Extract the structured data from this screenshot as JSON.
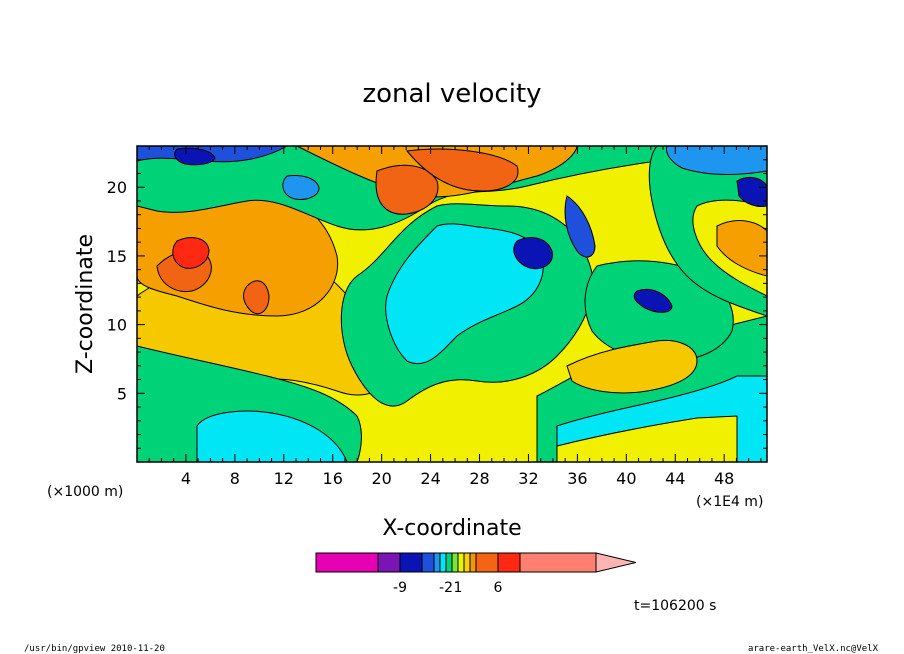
{
  "footer": {
    "left": "/usr/bin/gpview   2010-11-20",
    "right": "arare-earth_VelX.nc@VelX"
  },
  "chart_data": {
    "type": "heatmap",
    "title": "zonal velocity",
    "xlabel": "X-coordinate",
    "ylabel": "Z-coordinate",
    "x_unit": "(×1E4 m)",
    "y_unit": "(×1000 m)",
    "x_ticks": [
      "4",
      "8",
      "12",
      "16",
      "20",
      "24",
      "28",
      "32",
      "36",
      "40",
      "44",
      "48"
    ],
    "y_ticks": [
      "5",
      "10",
      "15",
      "20"
    ],
    "xlim": [
      0,
      51.5
    ],
    "ylim": [
      0,
      23
    ],
    "time_label": "t=106200 s",
    "colorbar": {
      "colors": [
        "#e600b4",
        "#7a14b4",
        "#0a14b4",
        "#1e50dc",
        "#1e96f0",
        "#00e6f5",
        "#00d278",
        "#78e632",
        "#e6f500",
        "#f5d200",
        "#f59600",
        "#f56414",
        "#ff2812",
        "#ff8070",
        "#ffb4b4"
      ],
      "tick_labels": [
        "-9",
        "-2",
        "1",
        "6"
      ]
    },
    "palette": {
      "cyan": "#00e6f5",
      "green": "#00d278",
      "lime": "#78e632",
      "yellow": "#f0f000",
      "gold": "#f5c800",
      "orange": "#f5a000",
      "darkorange": "#f06414",
      "red": "#ff2812",
      "blue": "#0a14b4",
      "medblue": "#1e50dc",
      "skyblue": "#1e96f0"
    }
  }
}
